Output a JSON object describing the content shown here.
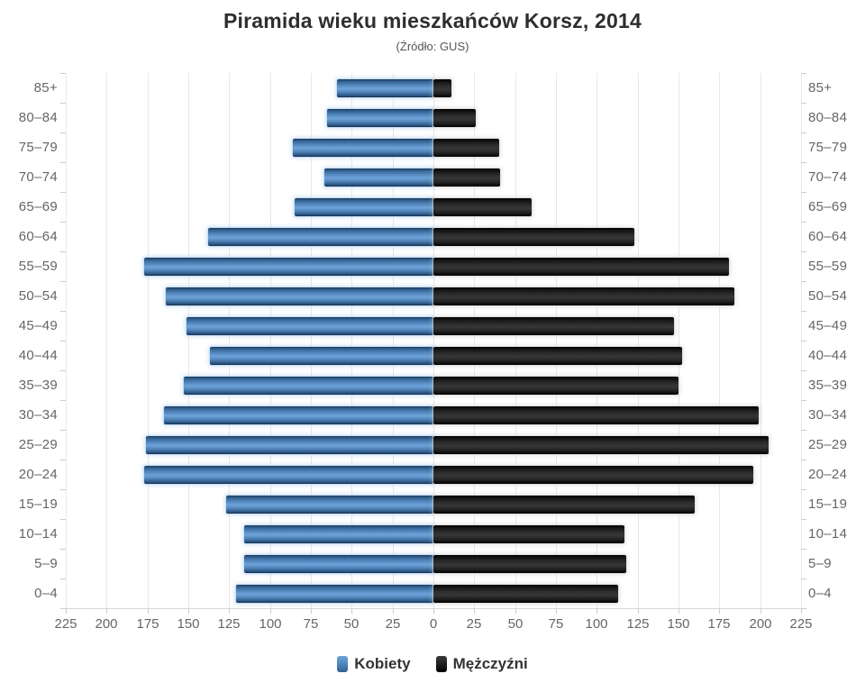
{
  "title": "Piramida wieku mieszkańców Korsz, 2014",
  "subtitle": "(Źródło: GUS)",
  "legend": {
    "items": [
      {
        "label": "Kobiety",
        "color": "#4f86c6"
      },
      {
        "label": "Mężczyźni",
        "color": "#1f1f1f"
      }
    ],
    "position": "bottom"
  },
  "axes": {
    "x_tick_labels": [
      "225",
      "200",
      "175",
      "150",
      "125",
      "100",
      "75",
      "50",
      "25",
      "0",
      "25",
      "50",
      "75",
      "100",
      "125",
      "150",
      "175",
      "200",
      "225"
    ],
    "x_tick_interval": 25,
    "x_max_each_side": 225,
    "grid_color": "#e8e8e8",
    "label_color": "#666666"
  },
  "chart_data": {
    "type": "bar",
    "orientation": "population-pyramid",
    "title": "Piramida wieku mieszkańców Korsz, 2014",
    "subtitle": "(Źródło: GUS)",
    "categories": [
      "85+",
      "80–84",
      "75–79",
      "70–74",
      "65–69",
      "60–64",
      "55–59",
      "50–54",
      "45–49",
      "40–44",
      "35–39",
      "30–34",
      "25–29",
      "20–24",
      "15–19",
      "10–14",
      "5–9",
      "0–4"
    ],
    "series": [
      {
        "name": "Kobiety",
        "side": "left",
        "color": "#4f86c6",
        "values": [
          59,
          65,
          86,
          67,
          85,
          138,
          177,
          164,
          151,
          137,
          153,
          165,
          176,
          177,
          127,
          116,
          116,
          121
        ]
      },
      {
        "name": "Mężczyźni",
        "side": "right",
        "color": "#1f1f1f",
        "values": [
          11,
          26,
          40,
          41,
          60,
          123,
          181,
          184,
          147,
          152,
          150,
          199,
          205,
          196,
          160,
          117,
          118,
          113
        ]
      }
    ],
    "xlim": [
      -225,
      225
    ],
    "x_tick_interval": 25,
    "grid": true,
    "legend_position": "bottom"
  }
}
